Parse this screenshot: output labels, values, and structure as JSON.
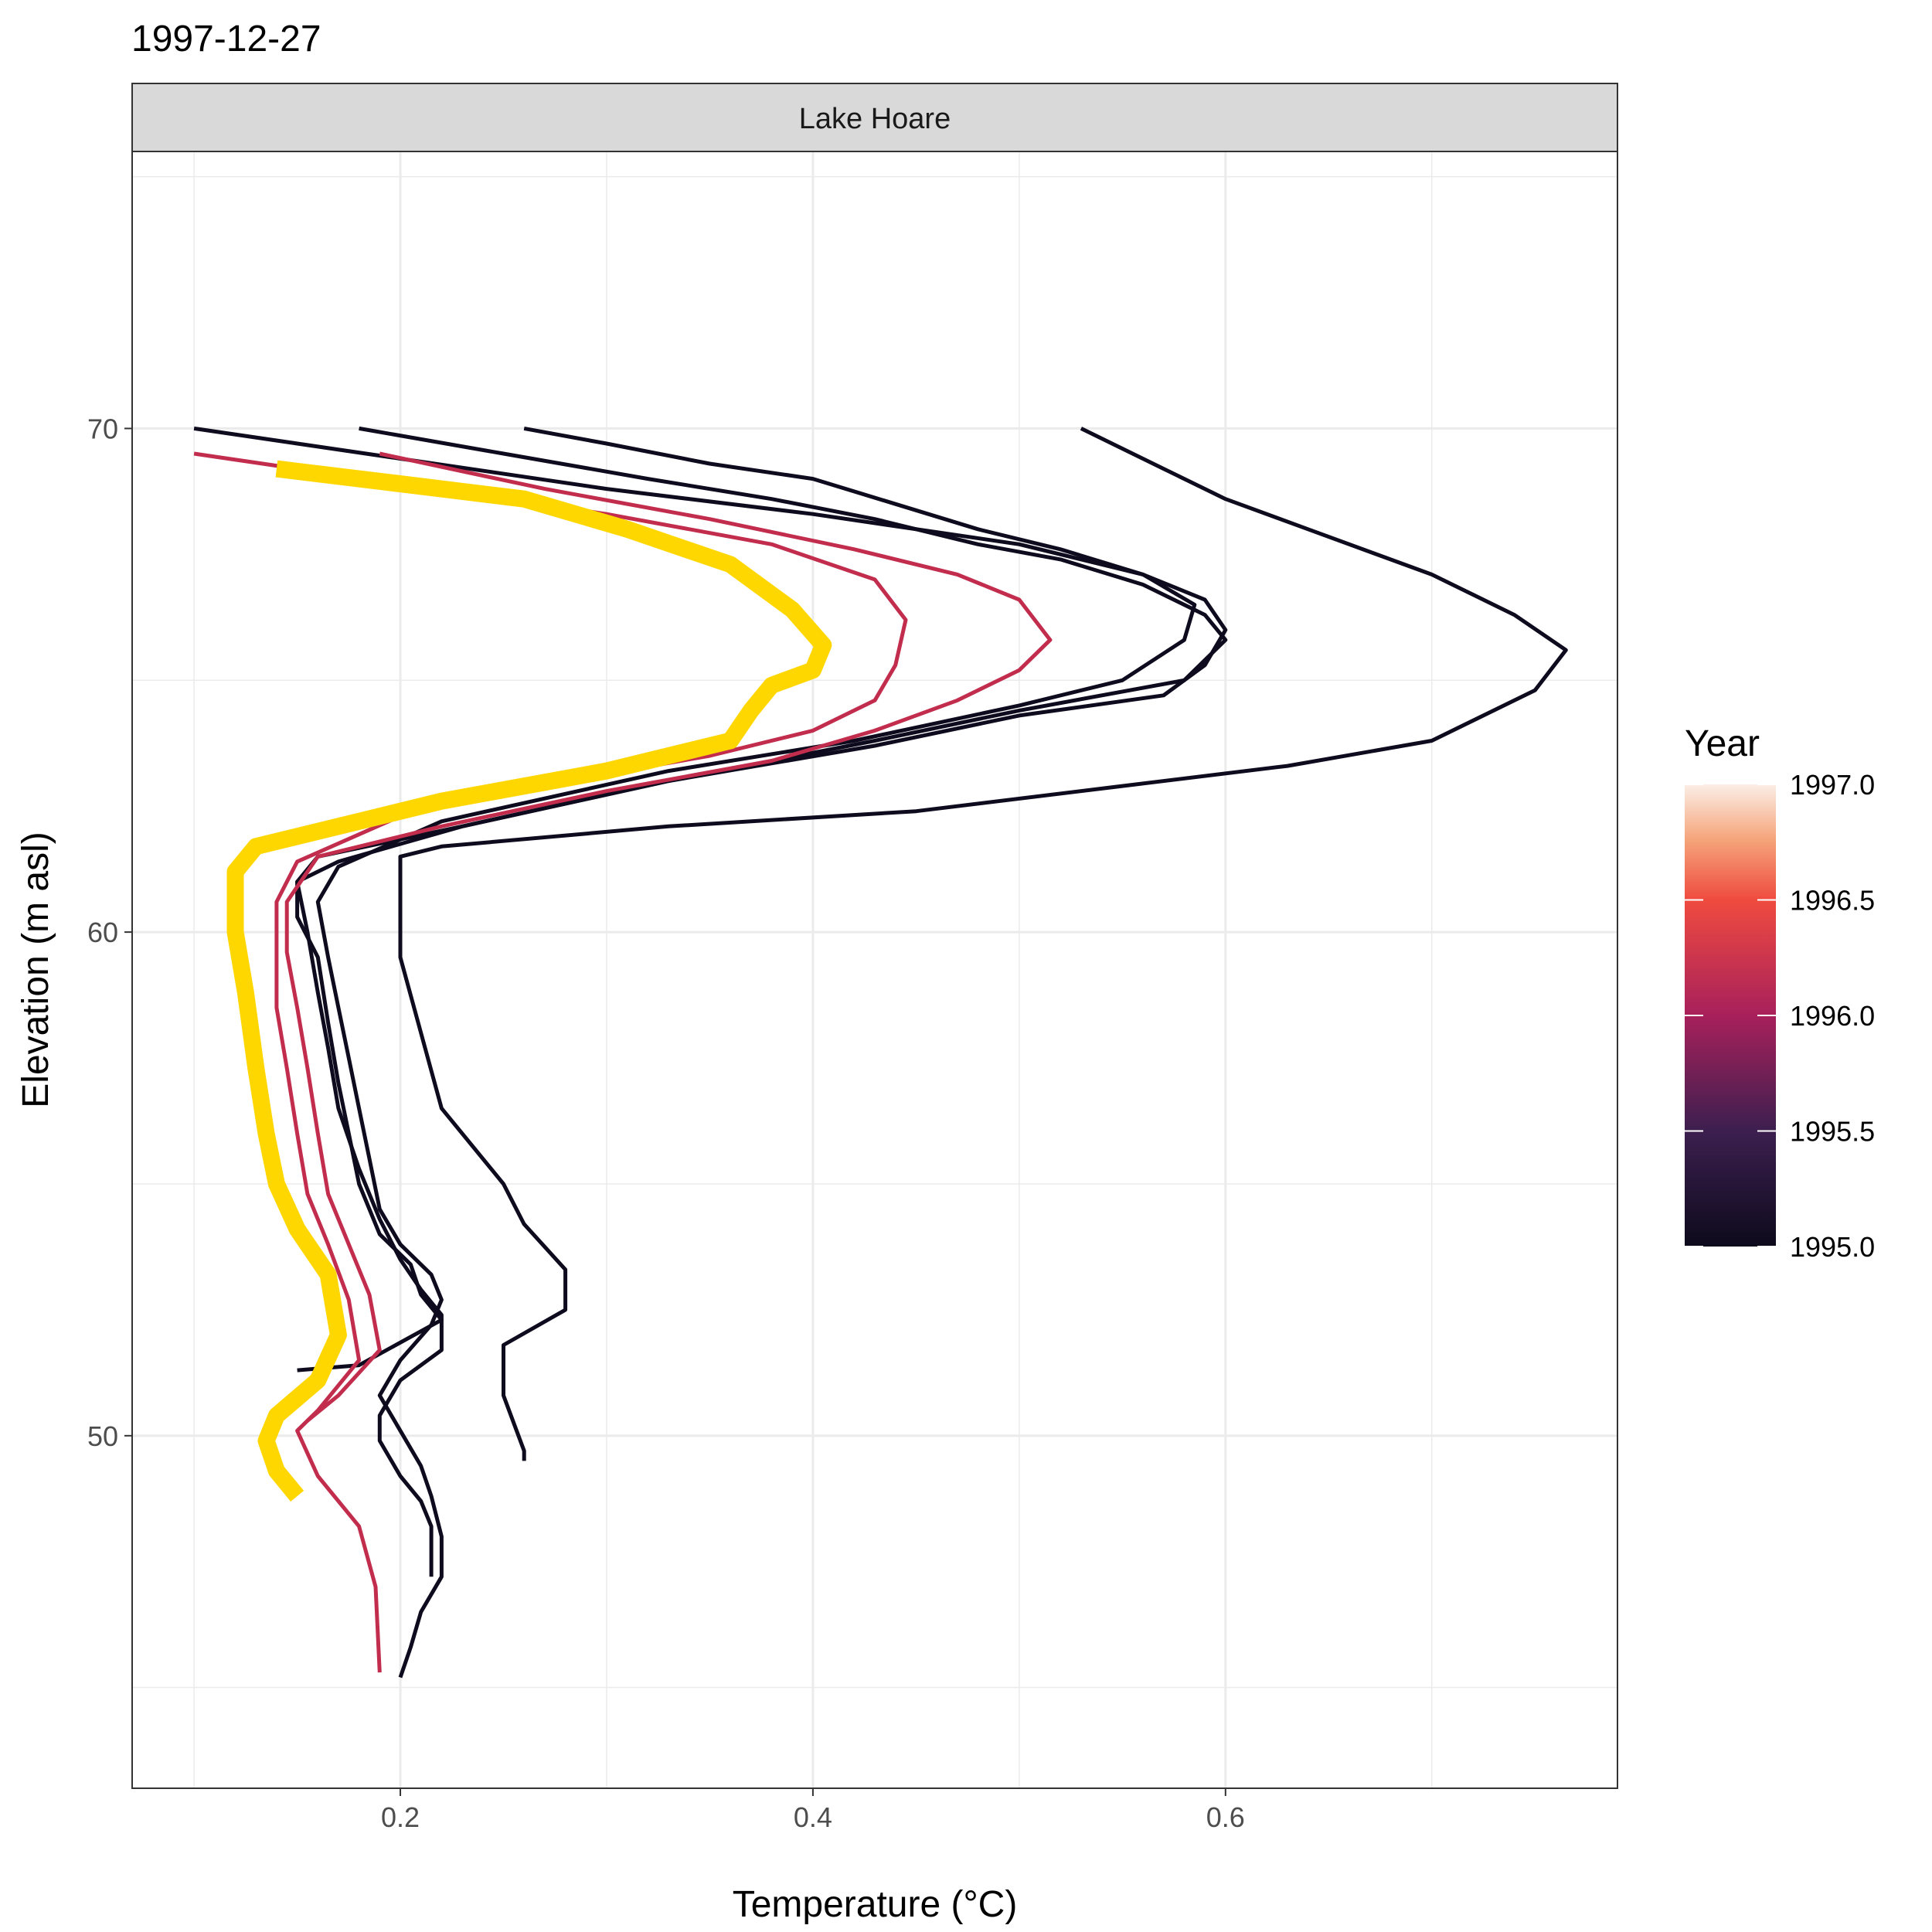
{
  "chart_data": {
    "type": "line",
    "title": "1997-12-27",
    "facet": "Lake Hoare",
    "xlabel": "Temperature (°C)",
    "ylabel": "Elevation (m asl)",
    "xlim": [
      0.07,
      0.79
    ],
    "ylim": [
      43,
      75.5
    ],
    "xticks": [
      0.2,
      0.4,
      0.6
    ],
    "xtick_labels": [
      "0.2",
      "0.4",
      "0.6"
    ],
    "yticks": [
      50,
      60,
      70
    ],
    "ytick_labels": [
      "50",
      "60",
      "70"
    ],
    "grid": true,
    "legend": {
      "title": "Year",
      "position": "right",
      "type": "colorbar",
      "range": [
        1995.0,
        1997.0
      ],
      "ticks": [
        1995.0,
        1995.5,
        1996.0,
        1996.5,
        1997.0
      ],
      "tick_labels": [
        "1995.0",
        "1995.5",
        "1996.0",
        "1996.5",
        "1997.0"
      ]
    },
    "colors": {
      "year_1995": "#0e0b1e",
      "year_1996": "#c22d4d",
      "highlight": "#ffd700",
      "panel_border": "#333333",
      "grid": "#ebebeb",
      "strip_fill": "#d9d9d9"
    },
    "series": [
      {
        "year": 1995,
        "points": [
          [
            0.53,
            70
          ],
          [
            0.57,
            69.2
          ],
          [
            0.6,
            68.6
          ],
          [
            0.64,
            68
          ],
          [
            0.7,
            67.1
          ],
          [
            0.74,
            66.3
          ],
          [
            0.765,
            65.6
          ],
          [
            0.75,
            64.8
          ],
          [
            0.7,
            63.8
          ],
          [
            0.63,
            63.3
          ],
          [
            0.55,
            62.9
          ],
          [
            0.45,
            62.4
          ],
          [
            0.33,
            62.1
          ],
          [
            0.22,
            61.7
          ],
          [
            0.2,
            61.5
          ],
          [
            0.2,
            60.4
          ],
          [
            0.2,
            59.5
          ],
          [
            0.21,
            58
          ],
          [
            0.22,
            56.5
          ],
          [
            0.25,
            55
          ],
          [
            0.26,
            54.2
          ],
          [
            0.28,
            53.3
          ],
          [
            0.28,
            52.5
          ],
          [
            0.25,
            51.8
          ],
          [
            0.25,
            50.8
          ],
          [
            0.26,
            49.7
          ],
          [
            0.26,
            49.5
          ]
        ]
      },
      {
        "year": 1995,
        "points": [
          [
            0.26,
            70
          ],
          [
            0.3,
            69.7
          ],
          [
            0.35,
            69.3
          ],
          [
            0.4,
            69
          ],
          [
            0.44,
            68.5
          ],
          [
            0.48,
            68
          ],
          [
            0.52,
            67.6
          ],
          [
            0.56,
            67.1
          ],
          [
            0.585,
            66.5
          ],
          [
            0.58,
            65.8
          ],
          [
            0.55,
            65
          ],
          [
            0.5,
            64.5
          ],
          [
            0.42,
            63.8
          ],
          [
            0.33,
            63.2
          ],
          [
            0.22,
            62.2
          ],
          [
            0.17,
            61.3
          ],
          [
            0.16,
            60.6
          ],
          [
            0.165,
            59.5
          ],
          [
            0.17,
            58.5
          ],
          [
            0.175,
            57.5
          ],
          [
            0.18,
            56.5
          ],
          [
            0.185,
            55.5
          ],
          [
            0.19,
            54.5
          ],
          [
            0.2,
            53.8
          ],
          [
            0.215,
            53.2
          ],
          [
            0.22,
            52.7
          ],
          [
            0.215,
            52.2
          ],
          [
            0.2,
            51.5
          ],
          [
            0.19,
            50.8
          ],
          [
            0.2,
            50.1
          ],
          [
            0.21,
            49.4
          ],
          [
            0.215,
            48.8
          ],
          [
            0.22,
            48
          ],
          [
            0.22,
            47.2
          ],
          [
            0.21,
            46.5
          ],
          [
            0.205,
            45.8
          ],
          [
            0.2,
            45.2
          ]
        ]
      },
      {
        "year": 1995,
        "points": [
          [
            0.18,
            70
          ],
          [
            0.25,
            69.5
          ],
          [
            0.32,
            69
          ],
          [
            0.38,
            68.6
          ],
          [
            0.43,
            68.2
          ],
          [
            0.48,
            67.7
          ],
          [
            0.52,
            67.4
          ],
          [
            0.56,
            66.9
          ],
          [
            0.59,
            66.3
          ],
          [
            0.6,
            65.8
          ],
          [
            0.58,
            65
          ],
          [
            0.5,
            64.4
          ],
          [
            0.43,
            63.8
          ],
          [
            0.33,
            63
          ],
          [
            0.23,
            62.1
          ],
          [
            0.17,
            61.4
          ],
          [
            0.15,
            61
          ],
          [
            0.15,
            60.3
          ],
          [
            0.16,
            59.5
          ],
          [
            0.165,
            58.2
          ],
          [
            0.17,
            57
          ],
          [
            0.175,
            56
          ],
          [
            0.18,
            55
          ],
          [
            0.19,
            54
          ],
          [
            0.205,
            53.4
          ],
          [
            0.21,
            52.8
          ],
          [
            0.22,
            52.3
          ],
          [
            0.18,
            51.4
          ],
          [
            0.15,
            51.3
          ]
        ]
      },
      {
        "year": 1995,
        "points": [
          [
            0.1,
            70
          ],
          [
            0.2,
            69.4
          ],
          [
            0.3,
            68.8
          ],
          [
            0.4,
            68.3
          ],
          [
            0.5,
            67.7
          ],
          [
            0.56,
            67.1
          ],
          [
            0.59,
            66.6
          ],
          [
            0.6,
            66
          ],
          [
            0.59,
            65.3
          ],
          [
            0.57,
            64.7
          ],
          [
            0.5,
            64.3
          ],
          [
            0.43,
            63.7
          ],
          [
            0.33,
            63
          ],
          [
            0.23,
            62.1
          ],
          [
            0.16,
            61.5
          ],
          [
            0.15,
            61
          ],
          [
            0.155,
            60
          ],
          [
            0.16,
            58.8
          ],
          [
            0.165,
            57.7
          ],
          [
            0.17,
            56.5
          ],
          [
            0.18,
            55.3
          ],
          [
            0.19,
            54.3
          ],
          [
            0.2,
            53.5
          ],
          [
            0.21,
            52.9
          ],
          [
            0.22,
            52.4
          ],
          [
            0.22,
            51.7
          ],
          [
            0.2,
            51.1
          ],
          [
            0.19,
            50.4
          ],
          [
            0.19,
            49.9
          ],
          [
            0.2,
            49.2
          ],
          [
            0.21,
            48.7
          ],
          [
            0.215,
            48.2
          ],
          [
            0.215,
            47.7
          ],
          [
            0.215,
            47.2
          ]
        ]
      },
      {
        "year": 1996,
        "points": [
          [
            0.1,
            69.5
          ],
          [
            0.2,
            68.9
          ],
          [
            0.3,
            68.3
          ],
          [
            0.38,
            67.7
          ],
          [
            0.43,
            67
          ],
          [
            0.445,
            66.2
          ],
          [
            0.44,
            65.3
          ],
          [
            0.43,
            64.6
          ],
          [
            0.4,
            64
          ],
          [
            0.35,
            63.5
          ],
          [
            0.28,
            63
          ],
          [
            0.2,
            62.3
          ],
          [
            0.15,
            61.4
          ],
          [
            0.14,
            60.6
          ],
          [
            0.14,
            59.6
          ],
          [
            0.14,
            58.5
          ],
          [
            0.145,
            57.3
          ],
          [
            0.15,
            56
          ],
          [
            0.155,
            54.8
          ],
          [
            0.165,
            53.8
          ],
          [
            0.175,
            52.7
          ],
          [
            0.18,
            51.5
          ],
          [
            0.16,
            50.5
          ],
          [
            0.15,
            50.1
          ],
          [
            0.16,
            49.2
          ],
          [
            0.18,
            48.2
          ],
          [
            0.188,
            47
          ],
          [
            0.19,
            45.3
          ]
        ]
      },
      {
        "year": 1996,
        "points": [
          [
            0.19,
            69.5
          ],
          [
            0.27,
            68.8
          ],
          [
            0.35,
            68.2
          ],
          [
            0.42,
            67.6
          ],
          [
            0.47,
            67.1
          ],
          [
            0.5,
            66.6
          ],
          [
            0.515,
            65.8
          ],
          [
            0.5,
            65.2
          ],
          [
            0.47,
            64.6
          ],
          [
            0.43,
            64
          ],
          [
            0.38,
            63.4
          ],
          [
            0.3,
            62.8
          ],
          [
            0.22,
            62.1
          ],
          [
            0.16,
            61.5
          ],
          [
            0.145,
            60.6
          ],
          [
            0.145,
            59.6
          ],
          [
            0.15,
            58.5
          ],
          [
            0.155,
            57.3
          ],
          [
            0.16,
            56
          ],
          [
            0.165,
            54.8
          ],
          [
            0.175,
            53.8
          ],
          [
            0.185,
            52.8
          ],
          [
            0.19,
            51.7
          ],
          [
            0.17,
            50.8
          ],
          [
            0.155,
            50.3
          ]
        ]
      },
      {
        "year": 1997,
        "highlight": true,
        "points": [
          [
            0.14,
            69.2
          ],
          [
            0.2,
            68.9
          ],
          [
            0.26,
            68.6
          ],
          [
            0.31,
            68
          ],
          [
            0.36,
            67.3
          ],
          [
            0.39,
            66.4
          ],
          [
            0.405,
            65.7
          ],
          [
            0.4,
            65.2
          ],
          [
            0.38,
            64.9
          ],
          [
            0.37,
            64.4
          ],
          [
            0.36,
            63.8
          ],
          [
            0.3,
            63.2
          ],
          [
            0.22,
            62.6
          ],
          [
            0.18,
            62.2
          ],
          [
            0.13,
            61.7
          ],
          [
            0.12,
            61.2
          ],
          [
            0.12,
            60
          ],
          [
            0.125,
            58.8
          ],
          [
            0.13,
            57.3
          ],
          [
            0.135,
            56
          ],
          [
            0.14,
            55
          ],
          [
            0.15,
            54.1
          ],
          [
            0.165,
            53.2
          ],
          [
            0.17,
            52
          ],
          [
            0.16,
            51.1
          ],
          [
            0.14,
            50.4
          ],
          [
            0.135,
            49.9
          ],
          [
            0.14,
            49.3
          ],
          [
            0.15,
            48.8
          ]
        ]
      }
    ]
  }
}
